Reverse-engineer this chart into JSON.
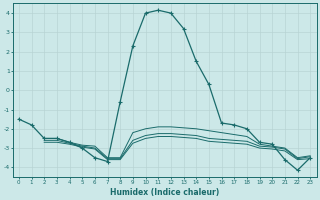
{
  "xlabel": "Humidex (Indice chaleur)",
  "xlim": [
    -0.5,
    23.5
  ],
  "ylim": [
    -4.5,
    4.5
  ],
  "xticks": [
    0,
    1,
    2,
    3,
    4,
    5,
    6,
    7,
    8,
    9,
    10,
    11,
    12,
    13,
    14,
    15,
    16,
    17,
    18,
    19,
    20,
    21,
    22,
    23
  ],
  "yticks": [
    -4,
    -3,
    -2,
    -1,
    0,
    1,
    2,
    3,
    4
  ],
  "background_color": "#cce8e8",
  "line_color": "#1a6b6b",
  "grid_color": "#b8d4d4",
  "line1_x": [
    0,
    1,
    2,
    3,
    4,
    5,
    6,
    7,
    8,
    9,
    10,
    11,
    12,
    13,
    14,
    15,
    16,
    17,
    18,
    19,
    20,
    21,
    22,
    23
  ],
  "line1_y": [
    -1.5,
    -1.8,
    -2.5,
    -2.5,
    -2.7,
    -3.0,
    -3.5,
    -3.7,
    -0.6,
    2.3,
    4.0,
    4.15,
    4.0,
    3.2,
    1.5,
    0.3,
    -1.7,
    -1.8,
    -2.0,
    -2.7,
    -2.8,
    -3.6,
    -4.15,
    -3.5
  ],
  "line2_x": [
    2,
    3,
    4,
    5,
    6,
    7,
    8,
    9,
    10,
    11,
    12,
    13,
    14,
    15,
    16,
    17,
    18,
    19,
    20,
    21,
    22,
    23
  ],
  "line2_y": [
    -2.5,
    -2.5,
    -2.7,
    -2.85,
    -2.9,
    -3.5,
    -3.5,
    -2.2,
    -2.0,
    -1.9,
    -1.9,
    -1.95,
    -2.0,
    -2.1,
    -2.2,
    -2.3,
    -2.4,
    -2.8,
    -2.9,
    -3.0,
    -3.5,
    -3.4
  ],
  "line3_x": [
    2,
    3,
    4,
    5,
    6,
    7,
    8,
    9,
    10,
    11,
    12,
    13,
    14,
    15,
    16,
    17,
    18,
    19,
    20,
    21,
    22,
    23
  ],
  "line3_y": [
    -2.6,
    -2.6,
    -2.75,
    -2.9,
    -3.0,
    -3.55,
    -3.55,
    -2.6,
    -2.35,
    -2.25,
    -2.25,
    -2.3,
    -2.35,
    -2.5,
    -2.55,
    -2.6,
    -2.65,
    -2.9,
    -2.95,
    -3.05,
    -3.55,
    -3.45
  ],
  "line4_x": [
    2,
    3,
    4,
    5,
    6,
    7,
    8,
    9,
    10,
    11,
    12,
    13,
    14,
    15,
    16,
    17,
    18,
    19,
    20,
    21,
    22,
    23
  ],
  "line4_y": [
    -2.7,
    -2.7,
    -2.8,
    -2.95,
    -3.05,
    -3.6,
    -3.6,
    -2.75,
    -2.5,
    -2.4,
    -2.4,
    -2.45,
    -2.5,
    -2.65,
    -2.7,
    -2.75,
    -2.8,
    -3.0,
    -3.05,
    -3.15,
    -3.6,
    -3.55
  ]
}
